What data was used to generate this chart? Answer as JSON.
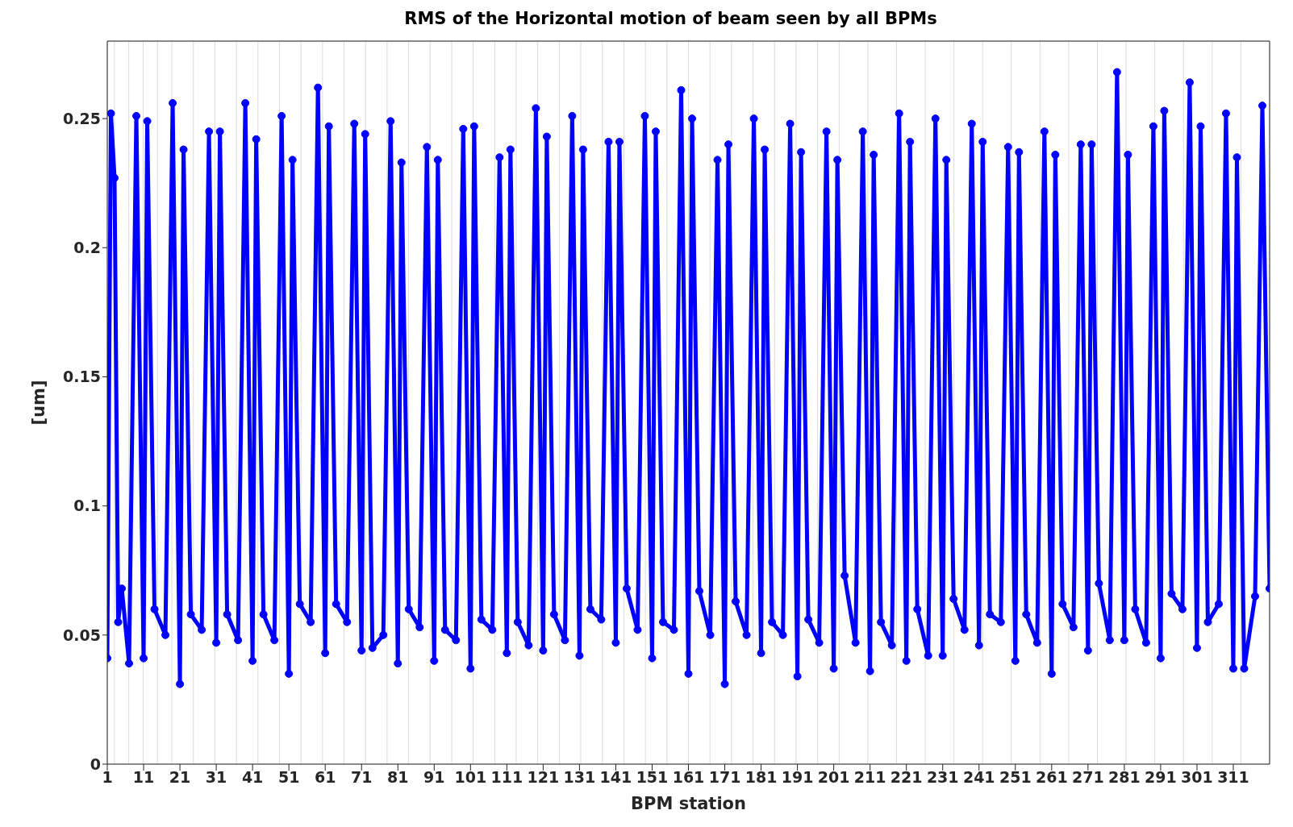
{
  "chart_data": {
    "type": "line",
    "title": "RMS of the Horizontal motion of beam seen by all BPMs",
    "xlabel": "BPM station",
    "ylabel": "[um]",
    "x": [
      1,
      2,
      3,
      4,
      5,
      7,
      9,
      11,
      12,
      14,
      17,
      19,
      21,
      22,
      24,
      27,
      29,
      31,
      32,
      34,
      37,
      39,
      41,
      42,
      44,
      47,
      49,
      51,
      52,
      54,
      57,
      59,
      61,
      62,
      64,
      67,
      69,
      71,
      72,
      74,
      77,
      79,
      81,
      82,
      84,
      87,
      89,
      91,
      92,
      94,
      97,
      99,
      101,
      102,
      104,
      107,
      109,
      111,
      112,
      114,
      117,
      119,
      121,
      122,
      124,
      127,
      129,
      131,
      132,
      134,
      137,
      139,
      141,
      142,
      144,
      147,
      149,
      151,
      152,
      154,
      157,
      159,
      161,
      162,
      164,
      167,
      169,
      171,
      172,
      174,
      177,
      179,
      181,
      182,
      184,
      187,
      189,
      191,
      192,
      194,
      197,
      199,
      201,
      202,
      204,
      207,
      209,
      211,
      212,
      214,
      217,
      219,
      221,
      222,
      224,
      227,
      229,
      231,
      232,
      234,
      237,
      239,
      241,
      242,
      244,
      247,
      249,
      251,
      252,
      254,
      257,
      259,
      261,
      262,
      264,
      267,
      269,
      271,
      272,
      274,
      277,
      279,
      281,
      282,
      284,
      287,
      289,
      291,
      292,
      294,
      297,
      299,
      301,
      302,
      304,
      307,
      309,
      311,
      312,
      314,
      317,
      319,
      321
    ],
    "series": [
      {
        "color": "#0000ff",
        "values": [
          0.041,
          0.252,
          0.227,
          0.055,
          0.068,
          0.039,
          0.251,
          0.041,
          0.249,
          0.06,
          0.05,
          0.256,
          0.031,
          0.238,
          0.058,
          0.052,
          0.245,
          0.047,
          0.245,
          0.058,
          0.048,
          0.256,
          0.04,
          0.242,
          0.058,
          0.048,
          0.251,
          0.035,
          0.234,
          0.062,
          0.055,
          0.262,
          0.043,
          0.247,
          0.062,
          0.055,
          0.248,
          0.044,
          0.244,
          0.045,
          0.05,
          0.249,
          0.039,
          0.233,
          0.06,
          0.053,
          0.239,
          0.04,
          0.234,
          0.052,
          0.048,
          0.246,
          0.037,
          0.247,
          0.056,
          0.052,
          0.235,
          0.043,
          0.238,
          0.055,
          0.046,
          0.254,
          0.044,
          0.243,
          0.058,
          0.048,
          0.251,
          0.042,
          0.238,
          0.06,
          0.056,
          0.241,
          0.047,
          0.241,
          0.068,
          0.052,
          0.251,
          0.041,
          0.245,
          0.055,
          0.052,
          0.261,
          0.035,
          0.25,
          0.067,
          0.05,
          0.234,
          0.031,
          0.24,
          0.063,
          0.05,
          0.25,
          0.043,
          0.238,
          0.055,
          0.05,
          0.248,
          0.034,
          0.237,
          0.056,
          0.047,
          0.245,
          0.037,
          0.234,
          0.073,
          0.047,
          0.245,
          0.036,
          0.236,
          0.055,
          0.046,
          0.252,
          0.04,
          0.241,
          0.06,
          0.042,
          0.25,
          0.042,
          0.234,
          0.064,
          0.052,
          0.248,
          0.046,
          0.241,
          0.058,
          0.055,
          0.239,
          0.04,
          0.237,
          0.058,
          0.047,
          0.245,
          0.035,
          0.236,
          0.062,
          0.053,
          0.24,
          0.044,
          0.24,
          0.07,
          0.048,
          0.268,
          0.048,
          0.236,
          0.06,
          0.047,
          0.247,
          0.041,
          0.253,
          0.066,
          0.06,
          0.264,
          0.045,
          0.247,
          0.055,
          0.062,
          0.252,
          0.037,
          0.235,
          0.037,
          0.065,
          0.255,
          0.068
        ]
      }
    ],
    "xlim": [
      1,
      321
    ],
    "xticks": [
      1,
      11,
      21,
      31,
      41,
      51,
      61,
      71,
      81,
      91,
      101,
      111,
      121,
      131,
      141,
      151,
      161,
      171,
      181,
      191,
      201,
      211,
      221,
      231,
      241,
      251,
      261,
      271,
      281,
      291,
      301,
      311
    ],
    "ylim": [
      0,
      0.28
    ],
    "yticks": [
      0,
      0.05,
      0.1,
      0.15,
      0.2,
      0.25
    ],
    "grid": true,
    "marker": "circle",
    "line_style": "solid"
  }
}
